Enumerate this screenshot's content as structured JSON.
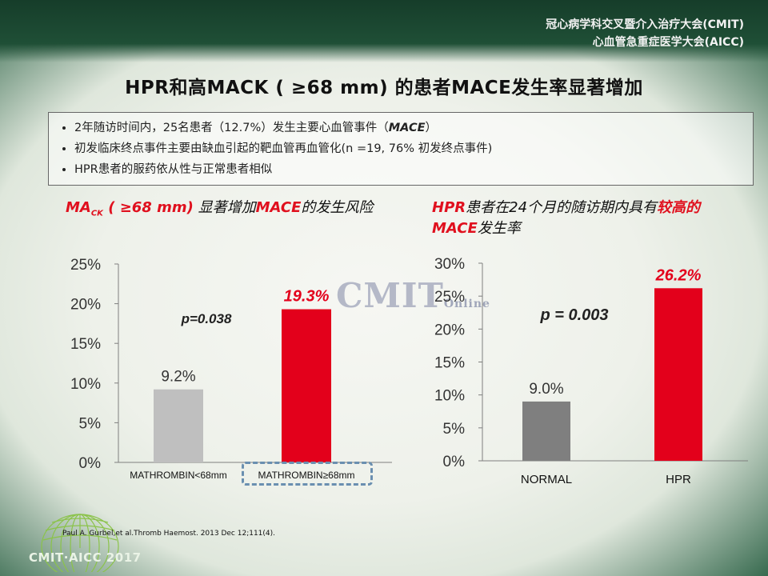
{
  "header": {
    "org_line1": "冠心病学科交叉暨介入治疗大会(CMIT)",
    "org_line2": "心血管急重症医学大会(AICC)"
  },
  "slide_title": "HPR和高MACK ( ≥68 mm) 的患者MACE发生率显著增加",
  "notes": {
    "item1_a": "2年随访时间内，25名患者（12.7%）发生主要心血管事件（",
    "item1_b": "MACE",
    "item1_c": "）",
    "item2": "初发临床终点事件主要由缺血引起的靶血管再血管化(n  =19, 76% 初发终点事件)",
    "item3": "HPR患者的服药依从性与正常患者相似"
  },
  "left_subtitle": {
    "red1": "MA",
    "red1_sub": "CK",
    "red1_rest": " ( ≥68 mm)",
    "black1": " 显著增加",
    "red2": "MACE",
    "black2": "的发生风险"
  },
  "right_subtitle": {
    "red1": "HPR",
    "black1": "患者在24个月的随访期内具有",
    "red2": "较高的MACE",
    "black2": "发生率"
  },
  "watermark": {
    "main": "CMIT",
    "small": "Online"
  },
  "reference": "Paul A. Gurbel,et al.Thromb Haemost. 2013 Dec 12;111(4).",
  "logo_text": "CMIT·AICC 2017",
  "colors": {
    "gray_bar": "#bfbfbf",
    "dark_gray_bar": "#7f7f7f",
    "red_bar": "#e3001b",
    "accent_red": "#e0101e"
  },
  "chart_data": [
    {
      "type": "bar",
      "categories": [
        "MATHROMBIN<68mm",
        "MATHROMBIN≥68mm"
      ],
      "values": [
        9.2,
        19.3
      ],
      "value_labels": [
        "9.2%",
        "19.3%"
      ],
      "bar_colors": [
        "#bfbfbf",
        "#e3001b"
      ],
      "annotation": "p=0.038",
      "ylim": [
        0,
        25
      ],
      "yticks": [
        "0%",
        "5%",
        "10%",
        "15%",
        "20%",
        "25%"
      ],
      "grid": false
    },
    {
      "type": "bar",
      "categories": [
        "NORMAL",
        "HPR"
      ],
      "values": [
        9.0,
        26.2
      ],
      "value_labels": [
        "9.0%",
        "26.2%"
      ],
      "bar_colors": [
        "#7f7f7f",
        "#e3001b"
      ],
      "annotation": "p = 0.003",
      "ylim": [
        0,
        30
      ],
      "yticks": [
        "0%",
        "5%",
        "10%",
        "15%",
        "20%",
        "25%",
        "30%"
      ],
      "grid": false
    }
  ]
}
